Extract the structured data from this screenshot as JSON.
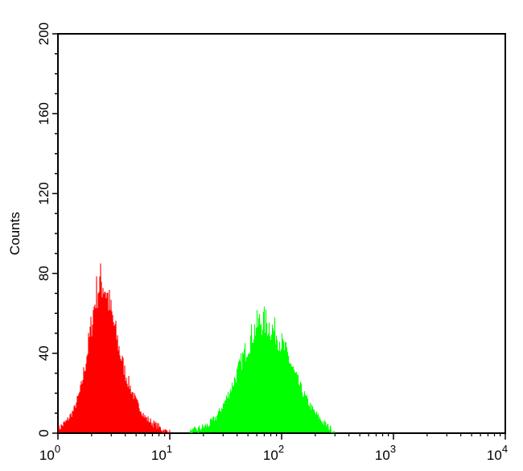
{
  "chart_data": {
    "type": "histogram",
    "xscale": "log",
    "xlim": [
      1,
      10000
    ],
    "ylim": [
      0,
      200
    ],
    "ylabel": "Counts",
    "xlabel": "",
    "x_ticks": [
      {
        "value": 1,
        "base": "10",
        "exp": "0"
      },
      {
        "value": 10,
        "base": "10",
        "exp": "1"
      },
      {
        "value": 100,
        "base": "10",
        "exp": "2"
      },
      {
        "value": 1000,
        "base": "10",
        "exp": "3"
      },
      {
        "value": 10000,
        "base": "10",
        "exp": "4"
      }
    ],
    "y_ticks": [
      {
        "value": 0,
        "label": "0"
      },
      {
        "value": 40,
        "label": "40"
      },
      {
        "value": 80,
        "label": "80"
      },
      {
        "value": 120,
        "label": "120"
      },
      {
        "value": 160,
        "label": "160"
      },
      {
        "value": 200,
        "label": "200"
      }
    ],
    "grid": false,
    "series": [
      {
        "color": "#ff0000",
        "peak_x": 2.5,
        "peak_count": 78,
        "range": [
          1,
          10
        ],
        "x": [
          1.0,
          1.2,
          1.4,
          1.6,
          1.8,
          2.0,
          2.2,
          2.4,
          2.6,
          2.8,
          3.0,
          3.3,
          3.6,
          4.0,
          4.5,
          5.0,
          5.5,
          6.0,
          7.0,
          8.0,
          9.0,
          10.0
        ],
        "counts": [
          2,
          6,
          12,
          22,
          38,
          55,
          70,
          76,
          74,
          68,
          60,
          50,
          40,
          30,
          22,
          16,
          12,
          8,
          5,
          3,
          1,
          0
        ]
      },
      {
        "color": "#00ff00",
        "peak_x": 70,
        "peak_count": 56,
        "range": [
          15,
          300
        ],
        "x": [
          15,
          18,
          22,
          26,
          30,
          35,
          40,
          45,
          50,
          55,
          60,
          65,
          70,
          80,
          90,
          100,
          115,
          130,
          150,
          175,
          200,
          230,
          260,
          300
        ],
        "counts": [
          0,
          2,
          4,
          8,
          14,
          22,
          30,
          38,
          44,
          50,
          54,
          56,
          56,
          53,
          50,
          45,
          38,
          30,
          22,
          15,
          10,
          6,
          3,
          0
        ]
      }
    ]
  }
}
